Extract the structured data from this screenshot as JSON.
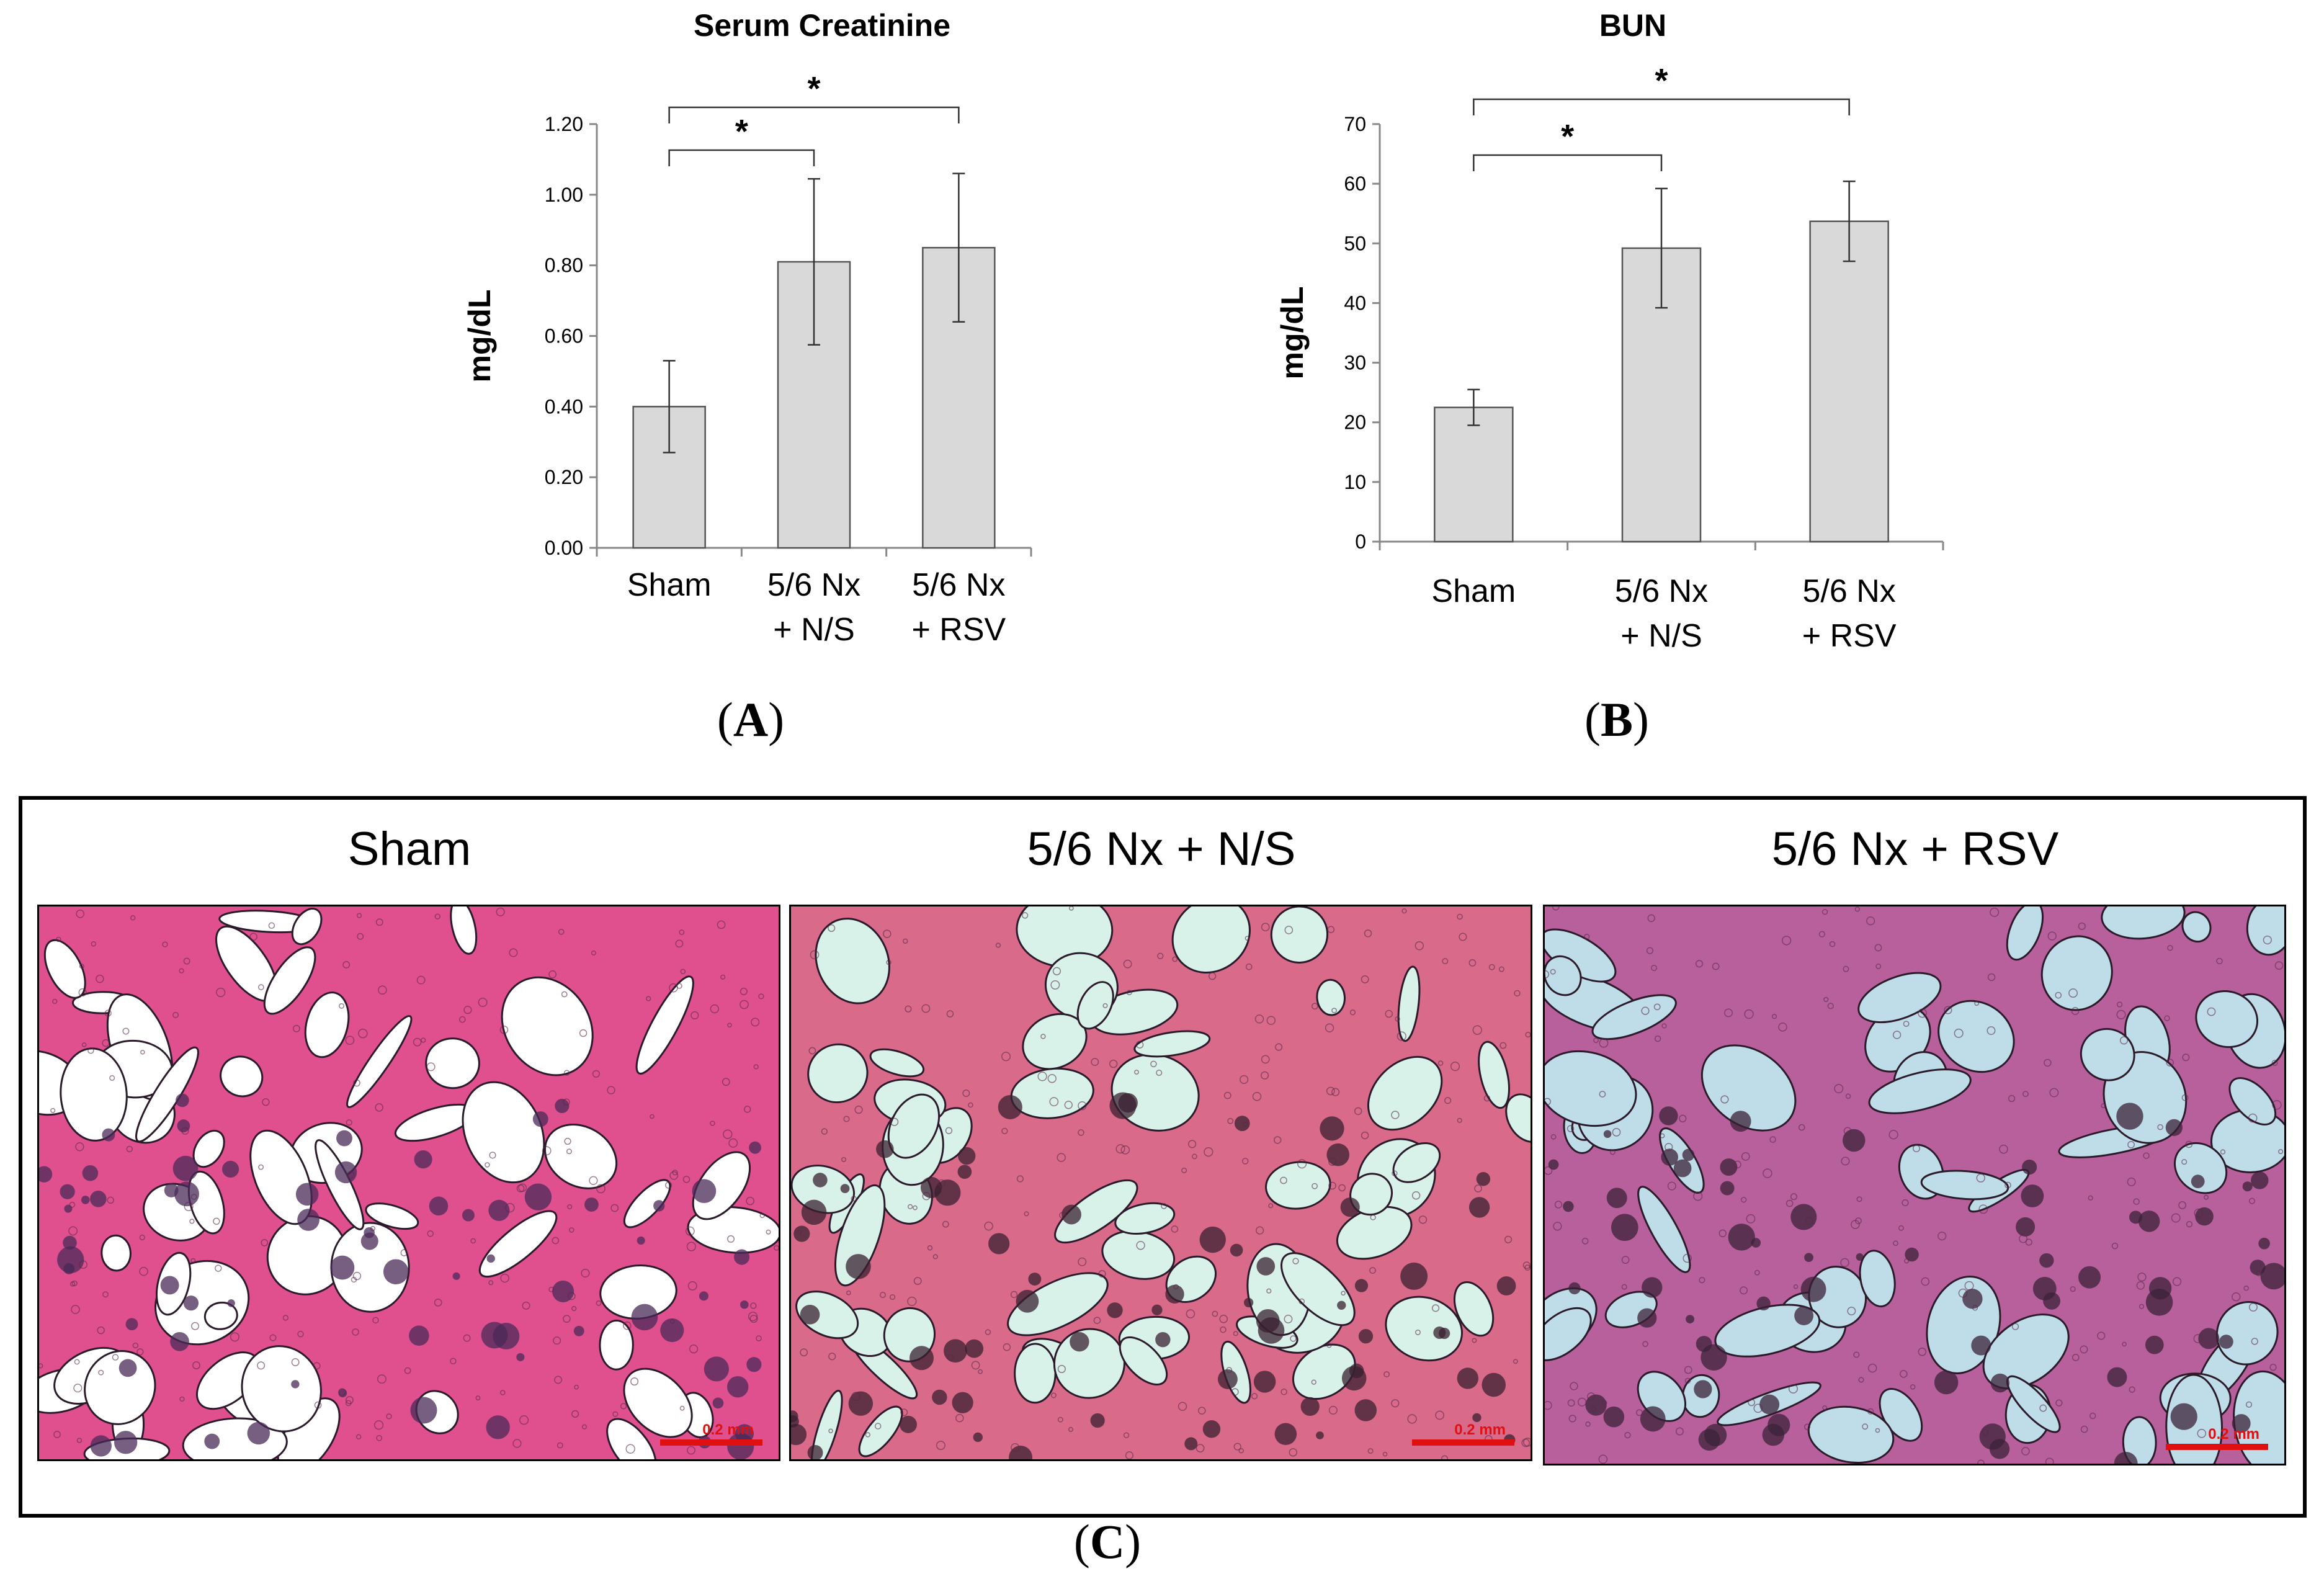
{
  "chart_data": [
    {
      "type": "bar",
      "title": "Serum Creatinine",
      "ylabel": "mg/dL",
      "xlabel": "",
      "categories": [
        "Sham",
        "5/6 Nx\n+ N/S",
        "5/6 Nx\n+ RSV"
      ],
      "values": [
        0.4,
        0.81,
        0.85
      ],
      "errors": [
        0.13,
        0.235,
        0.21
      ],
      "ylim": [
        0,
        1.2
      ],
      "yticks": [
        "0.00",
        "0.20",
        "0.40",
        "0.60",
        "0.80",
        "1.00",
        "1.20"
      ],
      "significance": [
        {
          "from": "Sham",
          "to": "5/6 Nx\n+ N/S",
          "label": "*"
        },
        {
          "from": "Sham",
          "to": "5/6 Nx\n+ RSV",
          "label": "*"
        }
      ],
      "bar_color": "#d9d9d9",
      "panel_label": "A"
    },
    {
      "type": "bar",
      "title": "BUN",
      "ylabel": "mg/dL",
      "xlabel": "",
      "categories": [
        "Sham",
        "5/6 Nx\n+ N/S",
        "5/6 Nx\n+ RSV"
      ],
      "values": [
        22.5,
        49.2,
        53.7
      ],
      "errors": [
        3.0,
        10.0,
        6.7
      ],
      "ylim": [
        0,
        70
      ],
      "yticks": [
        "0",
        "10",
        "20",
        "30",
        "40",
        "50",
        "60",
        "70"
      ],
      "significance": [
        {
          "from": "Sham",
          "to": "5/6 Nx\n+ N/S",
          "label": "*"
        },
        {
          "from": "Sham",
          "to": "5/6 Nx\n+ RSV",
          "label": "*"
        }
      ],
      "bar_color": "#d9d9d9",
      "panel_label": "B"
    }
  ],
  "panel_c": {
    "label": "C",
    "images": [
      {
        "title": "Sham",
        "scale": "0.2 mm",
        "background": "#ffffff",
        "tissue": "#e0508f",
        "marrow": "#4a2a58"
      },
      {
        "title": "5/6 Nx + N/S",
        "scale": "0.2 mm",
        "background": "#d8f2ea",
        "tissue": "#d96a8a",
        "marrow": "#3a2030"
      },
      {
        "title": "5/6 Nx + RSV",
        "scale": "0.2 mm",
        "background": "#bfdde8",
        "tissue": "#b8609c",
        "marrow": "#3b2238"
      }
    ]
  }
}
